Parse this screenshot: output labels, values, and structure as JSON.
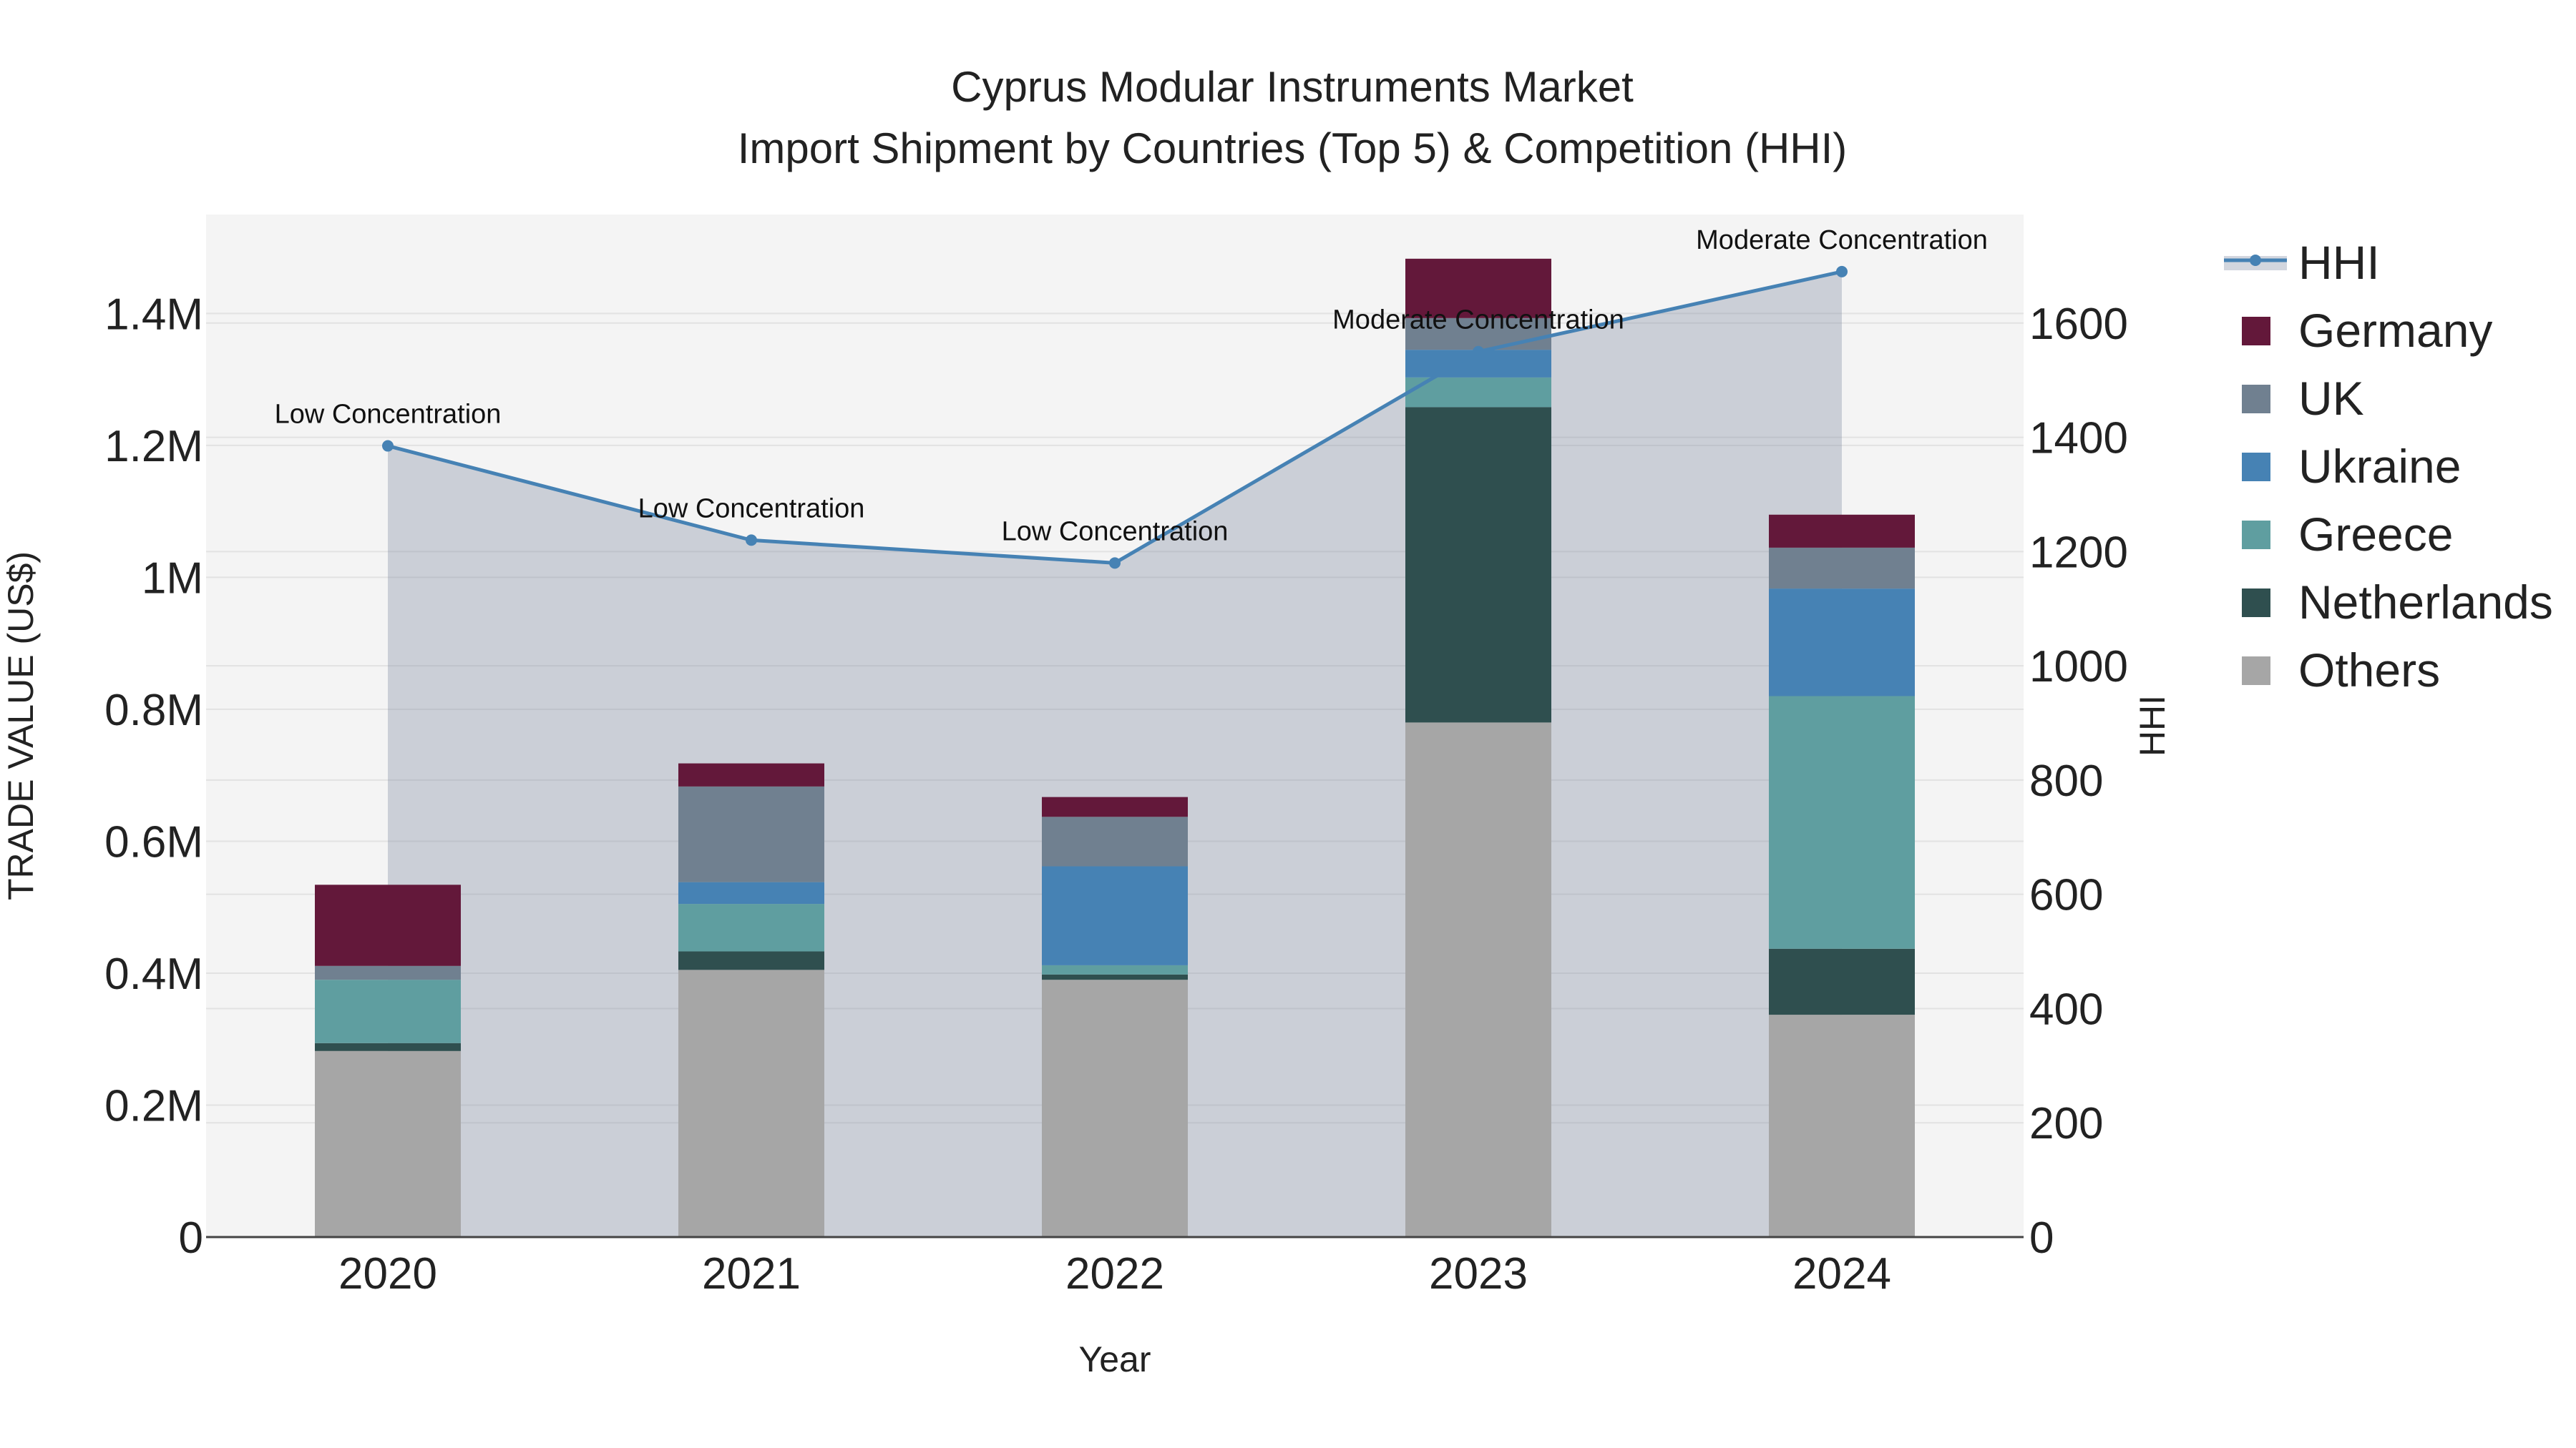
{
  "chart_data": {
    "type": "bar",
    "title": "Cyprus Modular Instruments Market",
    "subtitle": "Import Shipment by Countries (Top 5) & Competition (HHI)",
    "xlabel": "Year",
    "ylabel": "TRADE VALUE (US$)",
    "y2label": "HHI",
    "categories": [
      "2020",
      "2021",
      "2022",
      "2023",
      "2024"
    ],
    "ylim": [
      0,
      1550000
    ],
    "y2lim": [
      0,
      1790
    ],
    "yticks": [
      0,
      200000,
      400000,
      600000,
      800000,
      1000000,
      1200000,
      1400000
    ],
    "ytick_labels": [
      "0",
      "0.2M",
      "0.4M",
      "0.6M",
      "0.8M",
      "1M",
      "1.2M",
      "1.4M"
    ],
    "y2ticks": [
      0,
      200,
      400,
      600,
      800,
      1000,
      1200,
      1400,
      1600
    ],
    "y2tick_labels": [
      "0",
      "200",
      "400",
      "600",
      "800",
      "1000",
      "1200",
      "1400",
      "1600"
    ],
    "grid": true,
    "legend_position": "right",
    "series": [
      {
        "name": "Others",
        "color": "#a6a6a6",
        "values": [
          282000,
          405000,
          390000,
          780000,
          337000
        ]
      },
      {
        "name": "Netherlands",
        "color": "#2f4f4f",
        "values": [
          12000,
          28000,
          8000,
          478000,
          100000
        ]
      },
      {
        "name": "Greece",
        "color": "#5f9ea0",
        "values": [
          96000,
          72000,
          14000,
          45000,
          383000
        ]
      },
      {
        "name": "Ukraine",
        "color": "#4682b4",
        "values": [
          0,
          33000,
          150000,
          42000,
          163000
        ]
      },
      {
        "name": "UK",
        "color": "#708090",
        "values": [
          21000,
          145000,
          75000,
          48000,
          62000
        ]
      },
      {
        "name": "Germany",
        "color": "#63183a",
        "values": [
          123000,
          35000,
          30000,
          90000,
          50000
        ]
      }
    ],
    "legend_order": [
      "HHI",
      "Germany",
      "UK",
      "Ukraine",
      "Greece",
      "Netherlands",
      "Others"
    ],
    "hhi": {
      "name": "HHI",
      "color": "#4682b4",
      "values": [
        1385,
        1220,
        1180,
        1550,
        1690
      ],
      "labels": [
        "Low Concentration",
        "Low Concentration",
        "Low Concentration",
        "Moderate Concentration",
        "Moderate Concentration"
      ]
    }
  }
}
